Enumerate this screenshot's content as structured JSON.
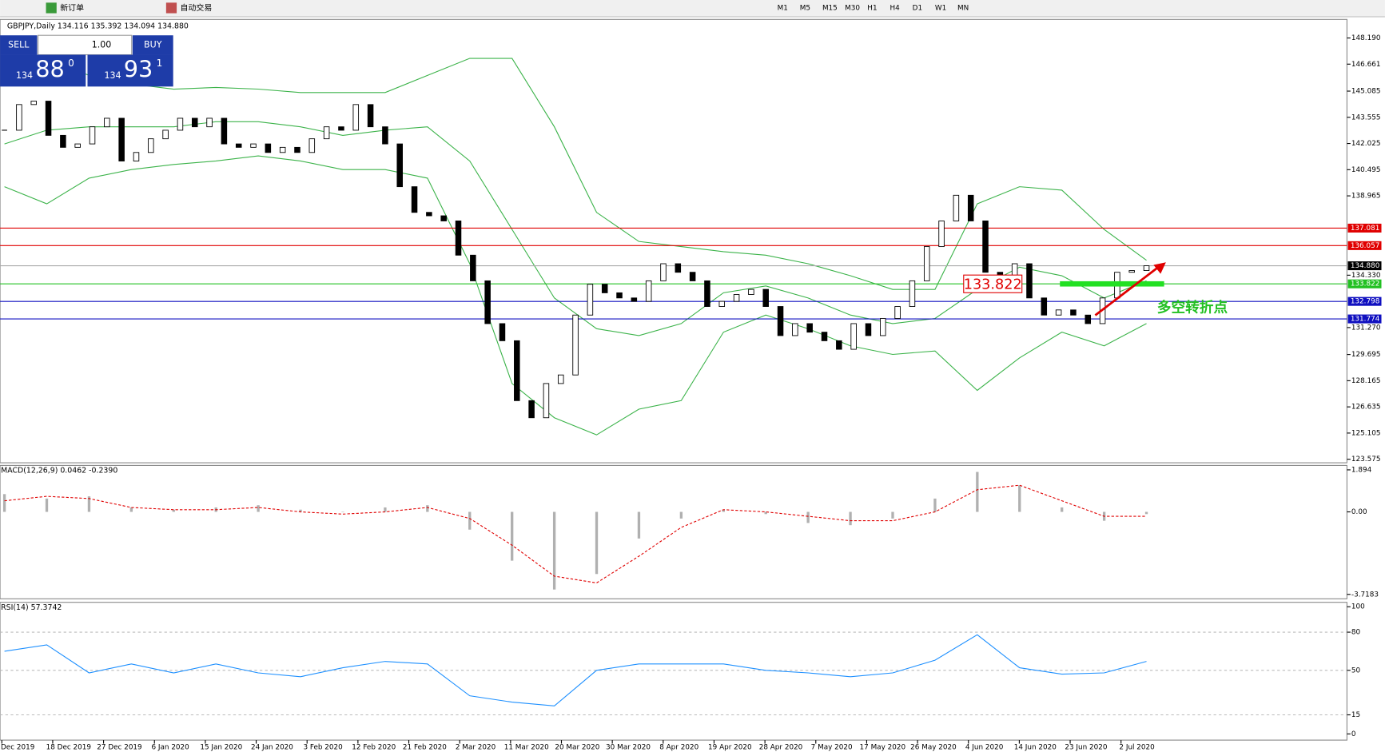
{
  "toolbar": {
    "new_order": "新订单",
    "auto_trading": "自动交易",
    "timeframes": [
      "M1",
      "M5",
      "M15",
      "M30",
      "H1",
      "H4",
      "D1",
      "W1",
      "MN"
    ]
  },
  "trade_panel": {
    "sell": "SELL",
    "buy": "BUY",
    "lot": "1.00",
    "bid": {
      "big": "134",
      "main": "88",
      "sup": "0"
    },
    "ask": {
      "big": "134",
      "main": "93",
      "sup": "1"
    }
  },
  "chart_data": [
    {
      "type": "candlestick",
      "title": "GBPJPY,Daily 134.116 135.392 134.094 134.880",
      "closes": [
        142.8,
        144.3,
        144.5,
        142.5,
        141.8,
        142.0,
        143.0,
        143.5,
        141.0,
        141.5,
        142.3,
        142.8,
        143.5,
        143.0,
        143.5,
        142.0,
        141.8,
        142.0,
        141.5,
        141.8,
        141.5,
        142.3,
        143.0,
        142.8,
        144.3,
        143.0,
        142.0,
        139.5,
        138.0,
        137.8,
        137.5,
        135.5,
        134.0,
        131.5,
        130.5,
        127.0,
        126.0,
        128.0,
        128.5,
        132.0,
        133.8,
        133.3,
        133.0,
        132.8,
        134.0,
        135.0,
        134.5,
        134.0,
        132.5,
        132.8,
        133.2,
        133.5,
        132.5,
        130.8,
        131.5,
        131.0,
        130.5,
        130.0,
        131.5,
        130.8,
        131.8,
        132.5,
        134.0,
        136.0,
        137.5,
        139.0,
        137.5,
        134.5,
        134.2,
        135.0,
        133.0,
        132.0,
        132.3,
        132.0,
        131.5,
        133.0,
        134.5,
        134.6,
        134.88
      ],
      "bands": {
        "color": "#3cb34a",
        "upper": [
          147,
          147,
          146,
          145.5,
          145.2,
          145.3,
          145.2,
          145,
          145,
          145,
          146,
          147,
          147,
          143,
          138,
          136.3,
          136,
          135.7,
          135.5,
          135,
          134.3,
          133.5,
          133.5,
          138.5,
          139.5,
          139.3,
          137,
          135.2
        ],
        "middle": [
          142,
          142.8,
          143,
          143,
          143,
          143.3,
          143.3,
          143,
          142.5,
          142.8,
          143,
          141,
          137,
          133,
          131.2,
          130.8,
          131.5,
          133.3,
          133.7,
          133,
          132,
          131.5,
          131.8,
          133.5,
          134.8,
          134.3,
          133,
          134
        ],
        "lower": [
          139.5,
          138.5,
          140,
          140.5,
          140.8,
          141,
          141.3,
          141,
          140.5,
          140.5,
          140,
          135,
          128,
          126,
          125,
          126.5,
          127,
          131,
          132,
          131.2,
          130.2,
          129.7,
          129.9,
          127.6,
          129.5,
          131,
          130.2,
          131.5
        ]
      },
      "ylim": [
        123.575,
        148.19
      ],
      "yticks": [
        {
          "value": 148.19,
          "label": "148.190"
        },
        {
          "value": 146.661,
          "label": "146.661"
        },
        {
          "value": 145.085,
          "label": "145.085"
        },
        {
          "value": 143.555,
          "label": "143.555"
        },
        {
          "value": 142.025,
          "label": "142.025"
        },
        {
          "value": 140.495,
          "label": "140.495"
        },
        {
          "value": 138.965,
          "label": "138.965"
        },
        {
          "value": 134.33,
          "label": "134.330"
        },
        {
          "value": 131.27,
          "label": "131.270"
        },
        {
          "value": 129.695,
          "label": "129.695"
        },
        {
          "value": 128.165,
          "label": "128.165"
        },
        {
          "value": 126.635,
          "label": "126.635"
        },
        {
          "value": 125.105,
          "label": "125.105"
        },
        123.575
      ],
      "levels": [
        {
          "value": 137.081,
          "label": "137.081",
          "color": "#e00000"
        },
        {
          "value": 136.057,
          "label": "136.057",
          "color": "#e00000"
        },
        {
          "value": 134.88,
          "label": "134.880",
          "color": "#000000"
        },
        {
          "value": 133.822,
          "label": "133.822",
          "color": "#22c022"
        },
        {
          "value": 132.798,
          "label": "132.798",
          "color": "#1010c0"
        },
        {
          "value": 131.774,
          "label": "131.774",
          "color": "#1010c0"
        }
      ],
      "annotation": "多空转折点",
      "date_labels": [
        "Dec 2019",
        "18 Dec 2019",
        "27 Dec 2019",
        "6 Jan 2020",
        "15 Jan 2020",
        "24 Jan 2020",
        "3 Feb 2020",
        "12 Feb 2020",
        "21 Feb 2020",
        "2 Mar 2020",
        "11 Mar 2020",
        "20 Mar 2020",
        "30 Mar 2020",
        "8 Apr 2020",
        "19 Apr 2020",
        "28 Apr 2020",
        "7 May 2020",
        "17 May 2020",
        "26 May 2020",
        "4 Jun 2020",
        "14 Jun 2020",
        "23 Jun 2020",
        "2 Jul 2020"
      ]
    },
    {
      "type": "macd",
      "title": "MACD(12,26,9) 0.0462 -0.2390",
      "histogram": [
        0.8,
        0.6,
        0.7,
        0.2,
        0.1,
        0.2,
        0.3,
        0.1,
        0,
        0.2,
        0.3,
        -0.8,
        -2.2,
        -3.5,
        -2.8,
        -1.2,
        -0.3,
        0.1,
        -0.1,
        -0.5,
        -0.6,
        -0.3,
        0.6,
        1.8,
        1.2,
        0.2,
        -0.4,
        -0.1
      ],
      "signal": [
        0.5,
        0.7,
        0.6,
        0.2,
        0.1,
        0.1,
        0.2,
        0.0,
        -0.1,
        0.0,
        0.2,
        -0.3,
        -1.5,
        -2.9,
        -3.2,
        -2.0,
        -0.7,
        0.1,
        0.0,
        -0.2,
        -0.4,
        -0.4,
        0.0,
        1.0,
        1.2,
        0.5,
        -0.2,
        -0.2
      ],
      "signal_color": "#e00000",
      "histogram_color": "#b0b0b0",
      "ylim": [
        -3.7183,
        1.894
      ],
      "yticks": [
        1.894,
        {
          "value": 0,
          "label": "0.00"
        },
        -3.7183
      ]
    },
    {
      "type": "rsi",
      "title": "RSI(14) 57.3742",
      "color": "#1e90ff",
      "values": [
        65,
        70,
        48,
        55,
        48,
        55,
        48,
        45,
        52,
        57,
        55,
        30,
        25,
        22,
        50,
        55,
        55,
        55,
        50,
        48,
        45,
        48,
        58,
        78,
        52,
        47,
        48,
        57
      ],
      "ylim": [
        0,
        100
      ],
      "yticks": [
        100,
        80,
        50,
        15,
        0
      ],
      "levels": [
        80,
        50,
        15
      ]
    }
  ]
}
